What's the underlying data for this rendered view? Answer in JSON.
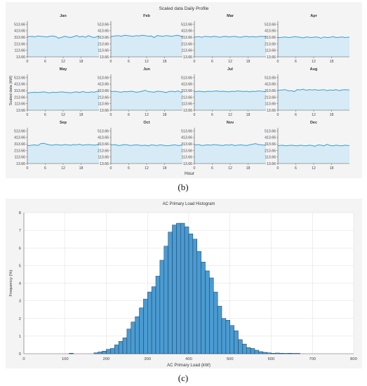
{
  "captions": {
    "b": "(b)",
    "c": "(c)"
  },
  "colors": {
    "line": "#3a9fd0",
    "area": "#d6ebf5",
    "bar": "#4a9bd1",
    "bar_edge": "#1b3a5a",
    "grid": "#dddddd",
    "panel": "#f4f4f4"
  },
  "chart_data": [
    {
      "type": "line",
      "title": "Scaled data Daily Profile",
      "xlabel": "Hour",
      "ylabel": "Scaled data (kW)",
      "yticks": [
        "513.66",
        "413.66",
        "313.66",
        "213.66",
        "113.66",
        "13.66"
      ],
      "xticks": [
        "0",
        "6",
        "12",
        "18"
      ],
      "ylim": [
        13.66,
        563.66
      ],
      "xlim": [
        0,
        24
      ],
      "months": [
        {
          "name": "Jan",
          "values": [
            325,
            330,
            320,
            335,
            330,
            325,
            320,
            330,
            335,
            325,
            300,
            315,
            330,
            320,
            310,
            325,
            340,
            320,
            330,
            315,
            340,
            320,
            310,
            330
          ]
        },
        {
          "name": "Feb",
          "values": [
            330,
            335,
            340,
            330,
            345,
            340,
            335,
            330,
            340,
            335,
            345,
            340,
            330,
            335,
            310,
            340,
            335,
            330,
            340,
            335,
            330,
            340,
            345,
            330
          ]
        },
        {
          "name": "Mar",
          "values": [
            320,
            325,
            315,
            330,
            325,
            320,
            330,
            325,
            315,
            325,
            330,
            320,
            325,
            330,
            320,
            315,
            325,
            330,
            320,
            325,
            320,
            325,
            330,
            325
          ]
        },
        {
          "name": "Apr",
          "values": [
            310,
            315,
            320,
            310,
            315,
            325,
            320,
            315,
            305,
            320,
            315,
            310,
            320,
            315,
            300,
            320,
            310,
            315,
            325,
            310,
            315,
            320,
            310,
            315
          ]
        },
        {
          "name": "May",
          "values": [
            280,
            285,
            290,
            285,
            290,
            295,
            285,
            280,
            290,
            285,
            290,
            295,
            290,
            285,
            280,
            290,
            295,
            285,
            300,
            290,
            285,
            295,
            290,
            305
          ]
        },
        {
          "name": "Jun",
          "values": [
            300,
            305,
            295,
            290,
            300,
            295,
            305,
            300,
            290,
            295,
            305,
            320,
            300,
            295,
            290,
            305,
            300,
            295,
            285,
            300,
            305,
            295,
            310,
            290
          ]
        },
        {
          "name": "Jul",
          "values": [
            300,
            305,
            300,
            295,
            305,
            300,
            305,
            310,
            300,
            305,
            300,
            295,
            305,
            300,
            310,
            305,
            300,
            305,
            295,
            305,
            300,
            310,
            305,
            300
          ]
        },
        {
          "name": "Aug",
          "values": [
            320,
            325,
            330,
            310,
            315,
            300,
            330,
            325,
            335,
            320,
            330,
            325,
            330,
            320,
            325,
            330,
            315,
            325,
            320,
            330,
            315,
            325,
            330,
            325
          ]
        },
        {
          "name": "Sep",
          "values": [
            290,
            295,
            300,
            290,
            320,
            325,
            310,
            300,
            295,
            305,
            300,
            295,
            305,
            300,
            295,
            305,
            300,
            310,
            295,
            300,
            305,
            300,
            295,
            305
          ]
        },
        {
          "name": "Oct",
          "values": [
            300,
            305,
            290,
            295,
            305,
            300,
            290,
            295,
            300,
            295,
            290,
            295,
            285,
            300,
            295,
            290,
            300,
            295,
            285,
            290,
            295,
            300,
            290,
            295
          ]
        },
        {
          "name": "Nov",
          "values": [
            300,
            305,
            290,
            295,
            300,
            295,
            305,
            300,
            295,
            290,
            300,
            295,
            305,
            290,
            295,
            300,
            295,
            290,
            300,
            310,
            320,
            305,
            300,
            295
          ]
        },
        {
          "name": "Dec",
          "values": [
            290,
            295,
            285,
            290,
            295,
            290,
            285,
            295,
            290,
            285,
            295,
            290,
            280,
            300,
            295,
            285,
            310,
            290,
            285,
            295,
            290,
            285,
            295,
            290
          ]
        }
      ]
    },
    {
      "type": "bar",
      "title": "AC Primary Load Histogram",
      "xlabel": "AC Primary Load (kW)",
      "ylabel": "Frequency (%)",
      "xlim": [
        0,
        800
      ],
      "ylim": [
        0,
        8
      ],
      "xticks": [
        0,
        100,
        200,
        300,
        400,
        500,
        600,
        700,
        800
      ],
      "yticks": [
        0,
        1,
        2,
        3,
        4,
        5,
        6,
        7,
        8
      ],
      "bin_width": 10,
      "bins_start": [
        110,
        170,
        180,
        190,
        200,
        210,
        220,
        230,
        240,
        250,
        260,
        270,
        280,
        290,
        300,
        310,
        320,
        330,
        340,
        350,
        360,
        370,
        380,
        390,
        400,
        410,
        420,
        430,
        440,
        450,
        460,
        470,
        480,
        490,
        500,
        510,
        520,
        530,
        540,
        550,
        560,
        570,
        580,
        590,
        600,
        610,
        620,
        630,
        640,
        650,
        660
      ],
      "values": [
        0.03,
        0.05,
        0.1,
        0.15,
        0.25,
        0.3,
        0.5,
        0.7,
        0.9,
        1.4,
        1.8,
        2.1,
        2.6,
        3.1,
        3.5,
        3.8,
        4.4,
        5.3,
        6.1,
        6.9,
        7.3,
        7.4,
        7.4,
        7.2,
        6.8,
        6.5,
        5.8,
        5.2,
        4.7,
        4.3,
        3.5,
        2.7,
        2.0,
        1.9,
        1.6,
        1.3,
        0.8,
        0.55,
        0.35,
        0.3,
        0.2,
        0.12,
        0.08,
        0.05,
        0.03,
        0.04,
        0.03,
        0.02,
        0.03,
        0.02,
        0.02
      ]
    }
  ]
}
